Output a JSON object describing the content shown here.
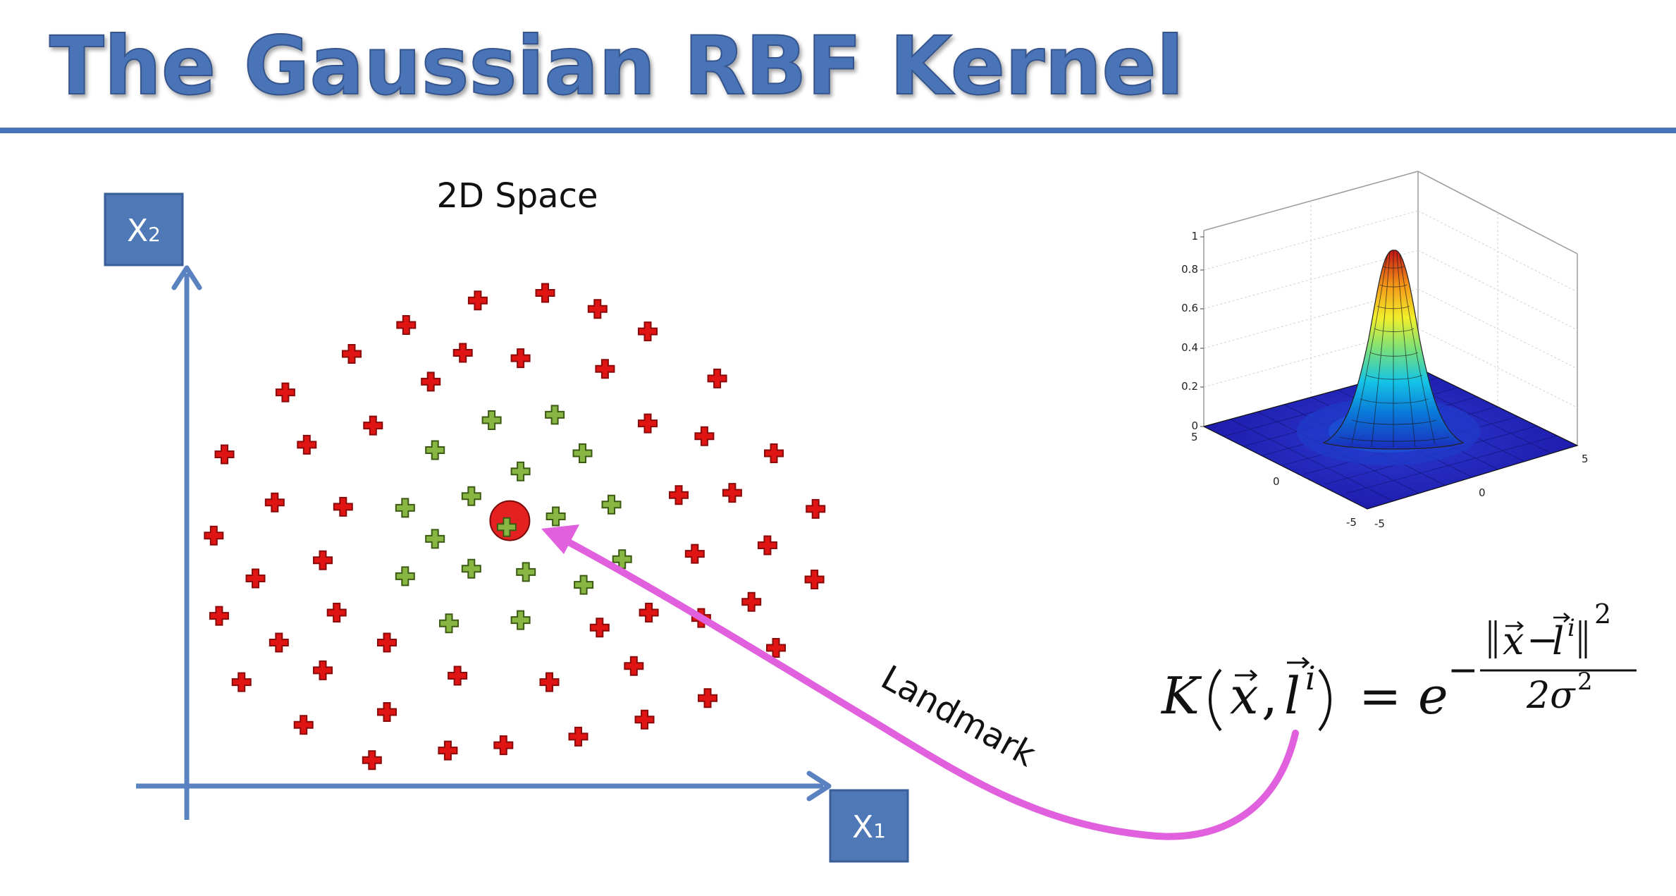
{
  "slide": {
    "title": "The Gaussian RBF Kernel",
    "subtitle": "2D Space",
    "annotation": "Landmark",
    "colors": {
      "title_fill": "#4a74b8",
      "rule": "#4a74b8",
      "axis": "#5a82c0",
      "axis_label_box": "#4f78b6",
      "positive_plus": "#88b642",
      "negative_plus": "#e11414",
      "landmark_fill": "#e42020",
      "arrow": "#e060de"
    }
  },
  "axes": {
    "x_label": "X",
    "x_sub": "1",
    "y_label": "X",
    "y_sub": "2"
  },
  "landmark": {
    "x": 477,
    "y": 487
  },
  "points": {
    "negative": [
      [
        447,
        281
      ],
      [
        510,
        274
      ],
      [
        559,
        289
      ],
      [
        606,
        310
      ],
      [
        380,
        304
      ],
      [
        329,
        331
      ],
      [
        433,
        330
      ],
      [
        487,
        335
      ],
      [
        566,
        345
      ],
      [
        671,
        354
      ],
      [
        403,
        357
      ],
      [
        267,
        367
      ],
      [
        349,
        398
      ],
      [
        606,
        396
      ],
      [
        659,
        408
      ],
      [
        210,
        425
      ],
      [
        287,
        416
      ],
      [
        724,
        424
      ],
      [
        257,
        470
      ],
      [
        321,
        474
      ],
      [
        635,
        463
      ],
      [
        685,
        461
      ],
      [
        763,
        476
      ],
      [
        200,
        501
      ],
      [
        302,
        524
      ],
      [
        718,
        510
      ],
      [
        650,
        518
      ],
      [
        239,
        541
      ],
      [
        762,
        542
      ],
      [
        315,
        573
      ],
      [
        205,
        576
      ],
      [
        607,
        573
      ],
      [
        656,
        578
      ],
      [
        703,
        563
      ],
      [
        561,
        587
      ],
      [
        261,
        601
      ],
      [
        362,
        601
      ],
      [
        726,
        606
      ],
      [
        302,
        627
      ],
      [
        593,
        623
      ],
      [
        428,
        632
      ],
      [
        514,
        638
      ],
      [
        226,
        638
      ],
      [
        662,
        653
      ],
      [
        362,
        666
      ],
      [
        603,
        673
      ],
      [
        284,
        678
      ],
      [
        541,
        689
      ],
      [
        471,
        697
      ],
      [
        419,
        702
      ],
      [
        348,
        711
      ]
    ],
    "positive": [
      [
        460,
        393
      ],
      [
        519,
        388
      ],
      [
        407,
        421
      ],
      [
        545,
        424
      ],
      [
        487,
        441
      ],
      [
        379,
        475
      ],
      [
        441,
        464
      ],
      [
        572,
        472
      ],
      [
        520,
        483
      ],
      [
        474,
        493
      ],
      [
        407,
        504
      ],
      [
        582,
        523
      ],
      [
        441,
        532
      ],
      [
        492,
        535
      ],
      [
        379,
        539
      ],
      [
        546,
        547
      ],
      [
        420,
        583
      ],
      [
        487,
        580
      ]
    ]
  },
  "surface_plot": {
    "z_ticks": [
      "0",
      "0.2",
      "0.4",
      "0.6",
      "0.8",
      "1"
    ],
    "x_ticks": [
      "5",
      "0",
      "-5"
    ],
    "y_ticks": [
      "-5",
      "0",
      "5"
    ]
  },
  "formula": {
    "lhs_K": "K",
    "lhs_x": "x",
    "lhs_l": "l",
    "lhs_sup": "i",
    "equals": "=",
    "base": "e",
    "minus": "−",
    "num_x": "x",
    "num_minus": "−",
    "num_l": "l",
    "num_sup": "i",
    "num_power": "2",
    "den": "2σ",
    "den_power": "2"
  }
}
